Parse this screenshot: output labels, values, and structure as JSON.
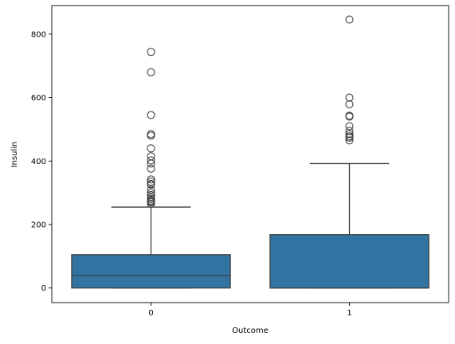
{
  "chart_data": {
    "type": "box",
    "title": "",
    "xlabel": "Outcome",
    "ylabel": "Insulin",
    "ylim": [
      -46,
      890
    ],
    "yticks": [
      0,
      200,
      400,
      600,
      800
    ],
    "grid": false,
    "colors": {
      "box_fill": "#3274a1",
      "line": "#3f3f3f",
      "axis": "#000000"
    },
    "categories": [
      "0",
      "1"
    ],
    "boxes": [
      {
        "category": "0",
        "whisker_low": 0,
        "q1": 0,
        "median": 39,
        "q3": 105,
        "whisker_high": 255,
        "outliers": [
          744,
          680,
          545,
          485,
          480,
          440,
          415,
          402,
          392,
          376,
          342,
          335,
          328,
          326,
          310,
          300,
          293,
          285,
          280,
          275,
          272,
          270,
          265
        ]
      },
      {
        "category": "1",
        "whisker_low": 0,
        "q1": 0,
        "median": 0,
        "q3": 168,
        "whisker_high": 392,
        "outliers": [
          846,
          600,
          579,
          543,
          540,
          510,
          495,
          485,
          478,
          474,
          465
        ]
      }
    ]
  }
}
